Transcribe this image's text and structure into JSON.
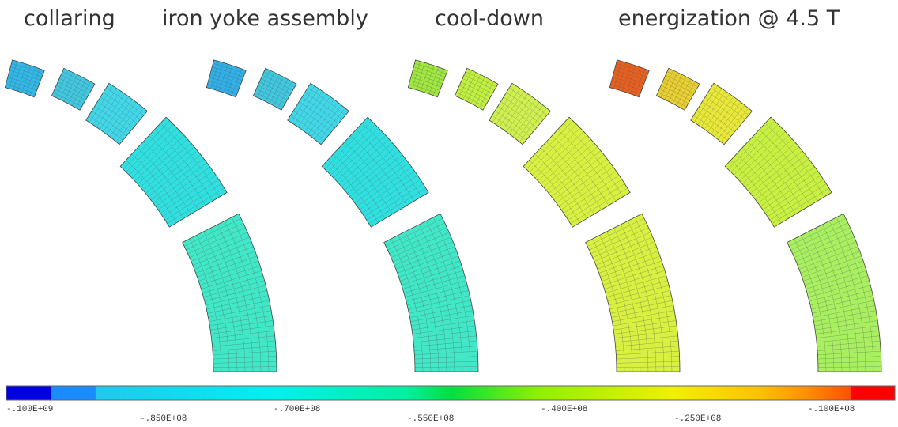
{
  "panels": [
    {
      "title": "collaring"
    },
    {
      "title": "iron yoke assembly"
    },
    {
      "title": "cool-down"
    },
    {
      "title": "energization @ 4.5 T"
    }
  ],
  "colorbar": {
    "labels": [
      "-.100E+09",
      "-.850E+08",
      "-.700E+08",
      "-.550E+08",
      "-.400E+08",
      "-.250E+08",
      "-.100E+08"
    ]
  }
}
